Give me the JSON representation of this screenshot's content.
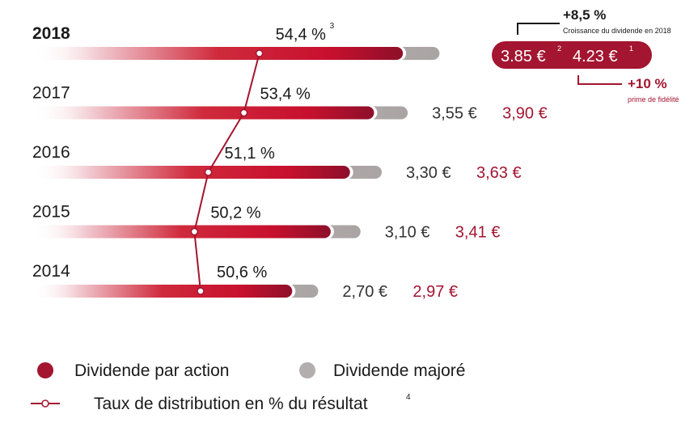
{
  "chart_data": {
    "type": "bar",
    "categories": [
      "2018",
      "2017",
      "2016",
      "2015",
      "2014"
    ],
    "series": [
      {
        "name": "Dividende par action",
        "values": [
          3.85,
          3.55,
          3.3,
          3.1,
          2.7
        ],
        "labels": [
          "3.85 €",
          "3,55 €",
          "3,30 €",
          "3,10 €",
          "2,70 €"
        ]
      },
      {
        "name": "Dividende majoré",
        "values": [
          4.23,
          3.9,
          3.63,
          3.41,
          2.97
        ],
        "labels": [
          "4.23 €",
          "3,90 €",
          "3,63 €",
          "3,41 €",
          "2,97 €"
        ]
      },
      {
        "name": "Taux de distribution en % du résultat",
        "values": [
          54.4,
          53.4,
          51.1,
          50.2,
          50.6
        ],
        "labels": [
          "54,4 %",
          "53,4 %",
          "51,1 %",
          "50,2 %",
          "50,6 %"
        ]
      }
    ],
    "footnotes": {
      "rate_2018": "3",
      "base_2018": "2",
      "major_2018": "1",
      "legend_rate": "4"
    },
    "annotations": {
      "growth_value": "+8,5 %",
      "growth_label": "Croissance du dividende en 2018",
      "bonus_value": "+10 %",
      "bonus_label": "prime de fidélité"
    },
    "legend_position": "bottom-left",
    "colors": {
      "dividend": "#a31530",
      "majored": "#b3adad",
      "line": "#a31530"
    }
  }
}
